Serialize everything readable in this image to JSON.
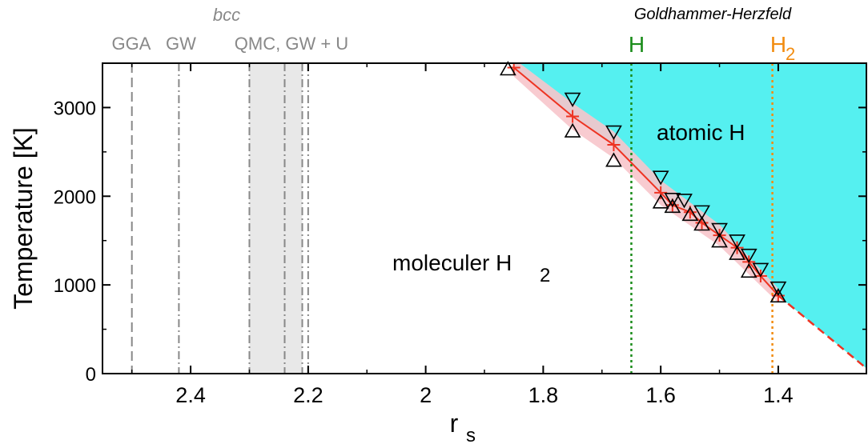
{
  "chart_data": {
    "type": "scatter",
    "xlabel": "r",
    "xlabel_sub": "s",
    "ylabel": "Temperature [K]",
    "xlim": [
      2.55,
      1.25
    ],
    "ylim": [
      0,
      3500
    ],
    "x_reversed": true,
    "xticks": [
      2.4,
      2.2,
      2.0,
      1.8,
      1.6,
      1.4
    ],
    "xtick_labels": [
      "2.4",
      "2.2",
      "2",
      "1.8",
      "1.6",
      "1.4"
    ],
    "yticks": [
      0,
      1000,
      2000,
      3000
    ],
    "ytick_labels": [
      "0",
      "1000",
      "2000",
      "3000"
    ],
    "grid": false,
    "colors": {
      "atomic_region": "#55f0f0",
      "boundary_line": "#ee3322",
      "uncertainty_band": "#f7c5cb",
      "bcc_band": "#e8e8e8",
      "gh_h": "#1a8c1a",
      "gh_h2": "#f28c10",
      "ref_lines": "#888888"
    },
    "region_labels": {
      "atomic": "atomic H",
      "molecular": "moleculer H",
      "molecular_sub": "2"
    },
    "bcc_label": "bcc",
    "bcc_band_range": [
      2.3,
      2.21
    ],
    "reference_lines": [
      {
        "label": "GGA",
        "x": 2.5,
        "style": "dashed"
      },
      {
        "label": "GW",
        "x": 2.42,
        "style": "dashdot"
      },
      {
        "label": "QMC, GW + U",
        "x": [
          2.3,
          2.24,
          2.21,
          2.2
        ],
        "style": "dashdot"
      }
    ],
    "goldhammer_herzfeld": {
      "title": "Goldhammer-Herzfeld",
      "lines": [
        {
          "label": "H",
          "sub": "",
          "x": 1.65
        },
        {
          "label": "H",
          "sub": "2",
          "x": 1.41
        }
      ]
    },
    "transition_line": {
      "x": [
        1.85,
        1.75,
        1.68,
        1.6,
        1.58,
        1.55,
        1.53,
        1.5,
        1.47,
        1.45,
        1.43,
        1.4
      ],
      "y": [
        3450,
        2900,
        2580,
        2040,
        1900,
        1820,
        1700,
        1560,
        1420,
        1260,
        1100,
        880
      ]
    },
    "extrapolation": {
      "x": [
        1.4,
        1.25
      ],
      "y": [
        880,
        60
      ]
    },
    "band": {
      "x": [
        1.85,
        1.75,
        1.68,
        1.6,
        1.5,
        1.4
      ],
      "upper": [
        3550,
        3050,
        2730,
        2180,
        1680,
        960
      ],
      "lower": [
        3350,
        2750,
        2430,
        1900,
        1440,
        800
      ]
    },
    "up_triangles": {
      "x": [
        1.86,
        1.75,
        1.68,
        1.6,
        1.58,
        1.55,
        1.53,
        1.5,
        1.47,
        1.45,
        1.4
      ],
      "y": [
        3430,
        2730,
        2400,
        1930,
        1880,
        1790,
        1680,
        1490,
        1350,
        1150,
        870
      ]
    },
    "down_triangles": {
      "x": [
        1.75,
        1.68,
        1.6,
        1.58,
        1.56,
        1.53,
        1.5,
        1.47,
        1.45,
        1.43,
        1.4
      ],
      "y": [
        3100,
        2730,
        2220,
        1970,
        1960,
        1830,
        1630,
        1500,
        1340,
        1180,
        970
      ]
    }
  }
}
